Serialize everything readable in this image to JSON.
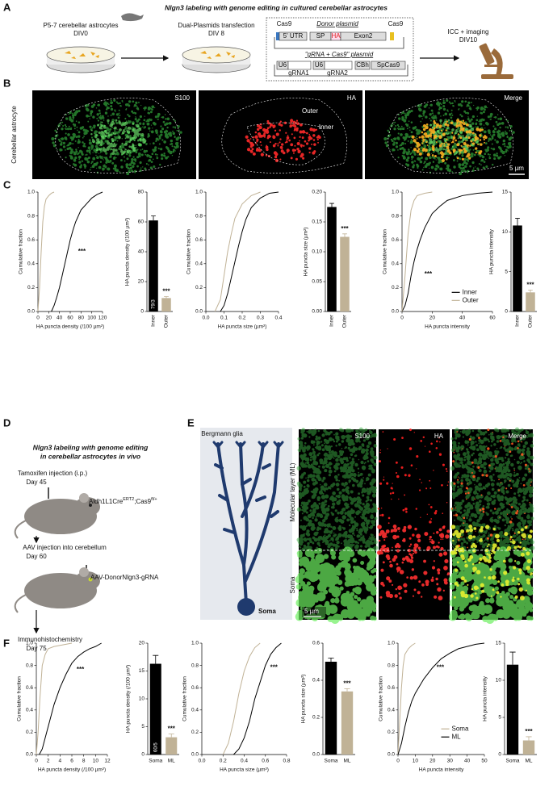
{
  "panel_labels": [
    "A",
    "B",
    "C",
    "D",
    "E",
    "F"
  ],
  "panel_a": {
    "title": "Nlgn3 labeling with genome editing in cultured cerebellar astrocytes",
    "step1": [
      "P5-7 cerebellar astrocytes",
      "DIV0"
    ],
    "step2": [
      "Dual-Plasmids transfection",
      "DIV 8"
    ],
    "donor_plasmid": {
      "title": "Donor plasmid",
      "cas9_left": "Cas9",
      "cas9_right": "Cas9",
      "segments": [
        "5' UTR",
        "SP",
        "HA",
        "Exon2"
      ]
    },
    "grna_plasmid": {
      "title": "\"gRNA + Cas9\" plasmid",
      "segments": [
        "U6",
        "U6",
        "CBh",
        "SpCas9"
      ],
      "guides": [
        "gRNA1",
        "gRNA2"
      ]
    },
    "step3": [
      "ICC + imaging",
      "DIV10"
    ]
  },
  "panel_b": {
    "row_label": "Cerebellar astrocyte",
    "channels": [
      "S100",
      "HA",
      "Merge"
    ],
    "regions": [
      "Outer",
      "Inner"
    ],
    "scale_bar": "5 µm"
  },
  "panel_d": {
    "title": [
      "Nlgn3 labeling with genome editing",
      "in cerebellar astrocytes in vivo"
    ],
    "step1": [
      "Tamoxifen injection (i.p.)",
      "Day 45"
    ],
    "mouse_line": [
      "Aldh1L1Cre",
      "ERT2",
      ";Cas9",
      "fl/+"
    ],
    "step2": [
      "AAV injection into cerebellum",
      "Day 60"
    ],
    "virus": "AAV-DonorNlgn3-gRNA",
    "step3": [
      "Immunohistochemistry",
      "Day 75"
    ]
  },
  "panel_e": {
    "schematic_title": "Bergmann glia",
    "schematic_soma": "Soma",
    "channels": [
      "S100",
      "HA",
      "Merge"
    ],
    "layers": [
      "Molecular layer (ML)",
      "Soma"
    ],
    "scale_bar": "5 µm"
  },
  "chart_data": [
    {
      "type": "line",
      "y_label": "Cumulative fraction",
      "x_label": "HA puncta density (/100 µm²)",
      "xlim": [
        0,
        120
      ],
      "xticks": [
        0,
        20,
        40,
        60,
        80,
        100,
        120
      ],
      "ylim": [
        0,
        1
      ],
      "yticks": [
        {
          "value": 0,
          "label": "0.0"
        },
        0.2,
        0.4,
        0.6,
        0.8,
        {
          "value": 1,
          "label": "1.0"
        }
      ],
      "series": [
        {
          "color": "#000000",
          "x": [
            25,
            30,
            35,
            40,
            45,
            50,
            55,
            60,
            65,
            70,
            80,
            90,
            100,
            110,
            120
          ],
          "values": [
            0,
            0.05,
            0.12,
            0.2,
            0.3,
            0.4,
            0.5,
            0.6,
            0.68,
            0.75,
            0.85,
            0.9,
            0.95,
            0.98,
            1
          ]
        },
        {
          "color": "#c0b296",
          "x": [
            0,
            3,
            6,
            9,
            12,
            15,
            20,
            25,
            30
          ],
          "values": [
            0,
            0.2,
            0.5,
            0.75,
            0.88,
            0.94,
            0.97,
            0.99,
            1
          ]
        }
      ],
      "significance": "***"
    },
    {
      "type": "bar",
      "y_label": "HA puncta density (/100 µm²)",
      "ylim": [
        0,
        80
      ],
      "yticks": [
        0,
        20,
        40,
        60,
        80
      ],
      "categories": [
        "Inner",
        "Outer"
      ],
      "values": [
        61,
        9
      ],
      "errors": [
        3,
        1
      ],
      "colors": [
        "#000000",
        "#c0b296"
      ],
      "n_label": "79/3",
      "significance": "***"
    },
    {
      "type": "line",
      "y_label": "Cumulative fraction",
      "x_label": "HA puncta size (µm²)",
      "xlim": [
        0,
        0.4
      ],
      "xticks": [
        {
          "value": 0,
          "label": "0.0"
        },
        0.1,
        0.2,
        0.3,
        0.4
      ],
      "ylim": [
        0,
        1
      ],
      "yticks": [
        {
          "value": 0,
          "label": "0.0"
        },
        0.2,
        0.4,
        0.6,
        0.8,
        {
          "value": 1,
          "label": "1.0"
        }
      ],
      "series": [
        {
          "color": "#000000",
          "x": [
            0.08,
            0.1,
            0.12,
            0.15,
            0.18,
            0.2,
            0.22,
            0.25,
            0.3,
            0.35,
            0.4
          ],
          "values": [
            0,
            0.05,
            0.15,
            0.35,
            0.55,
            0.67,
            0.77,
            0.87,
            0.95,
            0.99,
            1
          ]
        },
        {
          "color": "#c0b296",
          "x": [
            0.05,
            0.08,
            0.1,
            0.12,
            0.14,
            0.16,
            0.2,
            0.25,
            0.3
          ],
          "values": [
            0,
            0.1,
            0.3,
            0.5,
            0.65,
            0.78,
            0.9,
            0.97,
            1
          ]
        }
      ]
    },
    {
      "type": "bar",
      "y_label": "HA puncta size (µm²)",
      "ylim": [
        0,
        0.2
      ],
      "yticks": [
        {
          "value": 0,
          "label": "0.00"
        },
        0.05,
        {
          "value": 0.1,
          "label": "0.10"
        },
        0.15,
        {
          "value": 0.2,
          "label": "0.20"
        }
      ],
      "categories": [
        "Inner",
        "Outer"
      ],
      "values": [
        0.175,
        0.125
      ],
      "errors": [
        0.006,
        0.005
      ],
      "colors": [
        "#000000",
        "#c0b296"
      ],
      "significance": "***"
    },
    {
      "type": "line",
      "y_label": "Cumulative fraction",
      "x_label": "HA puncta intensity",
      "xlim": [
        0,
        60
      ],
      "xticks": [
        0,
        20,
        40,
        60
      ],
      "ylim": [
        0,
        1
      ],
      "yticks": [
        {
          "value": 0,
          "label": "0.0"
        },
        0.2,
        0.4,
        0.6,
        0.8,
        {
          "value": 1,
          "label": "1.0"
        }
      ],
      "legend": "lower right",
      "series": [
        {
          "name": "Inner",
          "color": "#000000",
          "x": [
            0,
            2,
            4,
            6,
            8,
            10,
            12,
            15,
            20,
            25,
            30,
            40,
            50,
            60
          ],
          "values": [
            0,
            0.05,
            0.15,
            0.3,
            0.42,
            0.52,
            0.6,
            0.7,
            0.82,
            0.88,
            0.93,
            0.97,
            0.99,
            1
          ]
        },
        {
          "name": "Outer",
          "color": "#c0b296",
          "x": [
            0,
            2,
            4,
            6,
            8,
            10,
            15,
            20
          ],
          "values": [
            0,
            0.3,
            0.65,
            0.85,
            0.93,
            0.97,
            0.99,
            1
          ]
        }
      ],
      "significance": "***"
    },
    {
      "type": "bar",
      "y_label": "HA puncta intensity",
      "ylim": [
        0,
        15
      ],
      "yticks": [
        0,
        5,
        10,
        15
      ],
      "categories": [
        "Inner",
        "Outer"
      ],
      "values": [
        10.8,
        2.4
      ],
      "errors": [
        0.9,
        0.3
      ],
      "colors": [
        "#000000",
        "#c0b296"
      ],
      "significance": "***"
    },
    {
      "type": "line",
      "y_label": "Cumulative fraction",
      "x_label": "HA puncta density (/100 µm²)",
      "xlim": [
        0,
        12
      ],
      "xticks": [
        0,
        2,
        4,
        6,
        8,
        10,
        12
      ],
      "ylim": [
        0,
        1
      ],
      "yticks": [
        {
          "value": 0,
          "label": "0.0"
        },
        0.2,
        0.4,
        0.6,
        0.8,
        {
          "value": 1,
          "label": "1.0"
        }
      ],
      "series": [
        {
          "color": "#c0b296",
          "x": [
            0,
            0.3,
            0.6,
            1,
            1.5,
            2,
            3,
            4,
            6
          ],
          "values": [
            0,
            0.2,
            0.5,
            0.8,
            0.9,
            0.95,
            0.97,
            0.98,
            1
          ]
        },
        {
          "color": "#000000",
          "x": [
            0.5,
            1,
            1.5,
            2,
            2.5,
            3,
            4,
            5,
            6,
            7,
            8,
            9,
            10,
            11
          ],
          "values": [
            0,
            0.05,
            0.15,
            0.25,
            0.35,
            0.45,
            0.6,
            0.72,
            0.82,
            0.88,
            0.92,
            0.95,
            0.97,
            1
          ]
        }
      ],
      "significance": "***"
    },
    {
      "type": "bar",
      "y_label": "HA puncta density (/100 µm²)",
      "ylim": [
        0,
        20
      ],
      "yticks": [
        0,
        5,
        10,
        15,
        20
      ],
      "categories": [
        "Soma",
        "ML"
      ],
      "values": [
        16.3,
        3.1
      ],
      "errors": [
        1.5,
        0.6
      ],
      "colors": [
        "#000000",
        "#c0b296"
      ],
      "n_label": "60/5",
      "significance": "***"
    },
    {
      "type": "line",
      "y_label": "Cumulative fraction",
      "x_label": "HA puncta size (µm²)",
      "xlim": [
        0,
        0.8
      ],
      "xticks": [
        {
          "value": 0,
          "label": "0.0"
        },
        0.2,
        0.4,
        0.6,
        0.8
      ],
      "ylim": [
        0,
        1
      ],
      "yticks": [
        {
          "value": 0,
          "label": "0.0"
        },
        0.2,
        0.4,
        0.6,
        0.8,
        {
          "value": 1,
          "label": "1.0"
        }
      ],
      "series": [
        {
          "color": "#c0b296",
          "x": [
            0.2,
            0.25,
            0.3,
            0.35,
            0.4,
            0.45,
            0.5,
            0.55
          ],
          "values": [
            0,
            0.1,
            0.3,
            0.55,
            0.75,
            0.88,
            0.96,
            1
          ]
        },
        {
          "color": "#000000",
          "x": [
            0.3,
            0.35,
            0.4,
            0.45,
            0.5,
            0.55,
            0.6,
            0.65,
            0.7,
            0.75
          ],
          "values": [
            0,
            0.05,
            0.15,
            0.3,
            0.5,
            0.65,
            0.8,
            0.9,
            0.96,
            1
          ]
        }
      ],
      "significance": "***"
    },
    {
      "type": "bar",
      "y_label": "HA puncta size (µm²)",
      "ylim": [
        0,
        0.6
      ],
      "yticks": [
        {
          "value": 0,
          "label": "0.0"
        },
        0.2,
        0.4,
        0.6
      ],
      "categories": [
        "Soma",
        "ML"
      ],
      "values": [
        0.5,
        0.34
      ],
      "errors": [
        0.02,
        0.015
      ],
      "colors": [
        "#000000",
        "#c0b296"
      ],
      "significance": "***"
    },
    {
      "type": "line",
      "y_label": "Cumulative fraction",
      "x_label": "HA puncta intensity",
      "xlim": [
        0,
        50
      ],
      "xticks": [
        0,
        10,
        20,
        30,
        40,
        50
      ],
      "ylim": [
        0,
        1
      ],
      "yticks": [
        {
          "value": 0,
          "label": "0.0"
        },
        0.2,
        0.4,
        0.6,
        0.8,
        {
          "value": 1,
          "label": "1.0"
        }
      ],
      "legend": "lower right",
      "series": [
        {
          "name": "Soma",
          "color": "#c0b296",
          "x": [
            0,
            1,
            2,
            3,
            4,
            6,
            8,
            10
          ],
          "values": [
            0,
            0.3,
            0.6,
            0.8,
            0.9,
            0.95,
            0.98,
            1
          ]
        },
        {
          "name": "ML",
          "color": "#000000",
          "x": [
            0,
            2,
            4,
            6,
            8,
            10,
            15,
            20,
            25,
            30,
            35,
            40,
            45,
            50
          ],
          "values": [
            0,
            0.1,
            0.25,
            0.38,
            0.48,
            0.55,
            0.68,
            0.78,
            0.86,
            0.91,
            0.95,
            0.97,
            0.99,
            1
          ]
        }
      ],
      "significance": "***"
    },
    {
      "type": "bar",
      "y_label": "HA puncta intensity",
      "ylim": [
        0,
        15
      ],
      "yticks": [
        0,
        5,
        10,
        15
      ],
      "categories": [
        "Soma",
        "ML"
      ],
      "values": [
        12.1,
        1.9
      ],
      "errors": [
        1.7,
        0.5
      ],
      "colors": [
        "#000000",
        "#c0b296"
      ],
      "significance": "***"
    }
  ]
}
